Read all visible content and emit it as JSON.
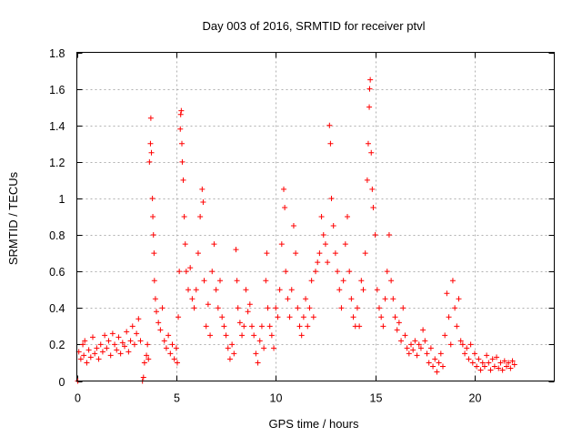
{
  "chart_data": {
    "type": "scatter",
    "title": "Day 003 of 2016, SRMTID for receiver ptvl",
    "xlabel": "GPS time / hours",
    "ylabel": "SRMTID / TECUs",
    "xlim": [
      0,
      24
    ],
    "ylim": [
      0,
      1.8
    ],
    "xticks": [
      0,
      5,
      10,
      15,
      20
    ],
    "xtick_labels": [
      "0",
      "5",
      "10",
      "15",
      "20"
    ],
    "yticks": [
      0,
      0.2,
      0.4,
      0.6,
      0.8,
      1.0,
      1.2,
      1.4,
      1.6,
      1.8
    ],
    "ytick_labels": [
      "0",
      "0.2",
      "0.4",
      "0.6",
      "0.8",
      "1",
      "1.2",
      "1.4",
      "1.6",
      "1.8"
    ],
    "grid": true,
    "marker": "+",
    "color": "#ff0000",
    "series": [
      {
        "name": "ptvl",
        "points": [
          [
            0.05,
            0.0
          ],
          [
            0.1,
            0.16
          ],
          [
            0.2,
            0.12
          ],
          [
            0.3,
            0.2
          ],
          [
            0.35,
            0.14
          ],
          [
            0.4,
            0.22
          ],
          [
            0.5,
            0.1
          ],
          [
            0.6,
            0.17
          ],
          [
            0.7,
            0.13
          ],
          [
            0.8,
            0.24
          ],
          [
            0.9,
            0.15
          ],
          [
            1.0,
            0.18
          ],
          [
            1.1,
            0.12
          ],
          [
            1.2,
            0.2
          ],
          [
            1.3,
            0.16
          ],
          [
            1.4,
            0.25
          ],
          [
            1.5,
            0.18
          ],
          [
            1.6,
            0.22
          ],
          [
            1.7,
            0.14
          ],
          [
            1.8,
            0.26
          ],
          [
            1.9,
            0.2
          ],
          [
            2.0,
            0.17
          ],
          [
            2.1,
            0.24
          ],
          [
            2.2,
            0.15
          ],
          [
            2.3,
            0.21
          ],
          [
            2.4,
            0.19
          ],
          [
            2.5,
            0.27
          ],
          [
            2.6,
            0.16
          ],
          [
            2.7,
            0.22
          ],
          [
            2.8,
            0.3
          ],
          [
            2.9,
            0.2
          ],
          [
            3.0,
            0.26
          ],
          [
            3.1,
            0.34
          ],
          [
            3.2,
            0.22
          ],
          [
            3.3,
            0.0
          ],
          [
            3.35,
            0.02
          ],
          [
            3.4,
            0.1
          ],
          [
            3.5,
            0.14
          ],
          [
            3.55,
            0.2
          ],
          [
            3.6,
            0.12
          ],
          [
            3.65,
            1.2
          ],
          [
            3.7,
            1.3
          ],
          [
            3.72,
            1.44
          ],
          [
            3.75,
            1.25
          ],
          [
            3.8,
            1.0
          ],
          [
            3.82,
            0.9
          ],
          [
            3.85,
            0.8
          ],
          [
            3.88,
            0.7
          ],
          [
            3.9,
            0.55
          ],
          [
            3.95,
            0.45
          ],
          [
            4.0,
            0.38
          ],
          [
            4.1,
            0.32
          ],
          [
            4.2,
            0.28
          ],
          [
            4.3,
            0.4
          ],
          [
            4.4,
            0.22
          ],
          [
            4.5,
            0.18
          ],
          [
            4.6,
            0.25
          ],
          [
            4.7,
            0.15
          ],
          [
            4.8,
            0.2
          ],
          [
            4.9,
            0.12
          ],
          [
            5.0,
            0.18
          ],
          [
            5.05,
            0.1
          ],
          [
            5.1,
            0.35
          ],
          [
            5.15,
            0.6
          ],
          [
            5.2,
            1.38
          ],
          [
            5.22,
            1.46
          ],
          [
            5.25,
            1.48
          ],
          [
            5.28,
            1.3
          ],
          [
            5.3,
            1.2
          ],
          [
            5.35,
            1.1
          ],
          [
            5.4,
            0.9
          ],
          [
            5.45,
            0.75
          ],
          [
            5.5,
            0.6
          ],
          [
            5.6,
            0.5
          ],
          [
            5.7,
            0.62
          ],
          [
            5.8,
            0.45
          ],
          [
            5.9,
            0.4
          ],
          [
            6.0,
            0.5
          ],
          [
            6.1,
            0.7
          ],
          [
            6.2,
            0.9
          ],
          [
            6.3,
            1.05
          ],
          [
            6.35,
            0.98
          ],
          [
            6.4,
            0.55
          ],
          [
            6.5,
            0.3
          ],
          [
            6.6,
            0.42
          ],
          [
            6.7,
            0.25
          ],
          [
            6.8,
            0.6
          ],
          [
            6.9,
            0.75
          ],
          [
            7.0,
            0.5
          ],
          [
            7.1,
            0.4
          ],
          [
            7.2,
            0.55
          ],
          [
            7.3,
            0.35
          ],
          [
            7.4,
            0.3
          ],
          [
            7.5,
            0.25
          ],
          [
            7.6,
            0.18
          ],
          [
            7.7,
            0.12
          ],
          [
            7.8,
            0.2
          ],
          [
            7.9,
            0.15
          ],
          [
            8.0,
            0.72
          ],
          [
            8.05,
            0.55
          ],
          [
            8.1,
            0.4
          ],
          [
            8.2,
            0.32
          ],
          [
            8.3,
            0.25
          ],
          [
            8.4,
            0.3
          ],
          [
            8.5,
            0.5
          ],
          [
            8.6,
            0.38
          ],
          [
            8.7,
            0.42
          ],
          [
            8.8,
            0.3
          ],
          [
            8.9,
            0.25
          ],
          [
            9.0,
            0.15
          ],
          [
            9.1,
            0.1
          ],
          [
            9.2,
            0.22
          ],
          [
            9.3,
            0.3
          ],
          [
            9.4,
            0.18
          ],
          [
            9.5,
            0.55
          ],
          [
            9.55,
            0.7
          ],
          [
            9.6,
            0.4
          ],
          [
            9.7,
            0.3
          ],
          [
            9.8,
            0.25
          ],
          [
            9.9,
            0.18
          ],
          [
            10.0,
            0.4
          ],
          [
            10.1,
            0.35
          ],
          [
            10.2,
            0.5
          ],
          [
            10.3,
            0.75
          ],
          [
            10.4,
            1.05
          ],
          [
            10.45,
            0.95
          ],
          [
            10.5,
            0.6
          ],
          [
            10.6,
            0.45
          ],
          [
            10.7,
            0.35
          ],
          [
            10.8,
            0.5
          ],
          [
            10.9,
            0.85
          ],
          [
            11.0,
            0.7
          ],
          [
            11.1,
            0.4
          ],
          [
            11.2,
            0.3
          ],
          [
            11.3,
            0.25
          ],
          [
            11.4,
            0.35
          ],
          [
            11.5,
            0.45
          ],
          [
            11.6,
            0.3
          ],
          [
            11.7,
            0.4
          ],
          [
            11.8,
            0.55
          ],
          [
            11.9,
            0.35
          ],
          [
            12.0,
            0.6
          ],
          [
            12.1,
            0.65
          ],
          [
            12.2,
            0.7
          ],
          [
            12.3,
            0.9
          ],
          [
            12.4,
            0.8
          ],
          [
            12.5,
            0.75
          ],
          [
            12.6,
            0.65
          ],
          [
            12.7,
            1.4
          ],
          [
            12.75,
            1.3
          ],
          [
            12.8,
            1.0
          ],
          [
            12.9,
            0.85
          ],
          [
            13.0,
            0.7
          ],
          [
            13.1,
            0.6
          ],
          [
            13.2,
            0.5
          ],
          [
            13.3,
            0.4
          ],
          [
            13.4,
            0.55
          ],
          [
            13.5,
            0.75
          ],
          [
            13.6,
            0.9
          ],
          [
            13.7,
            0.6
          ],
          [
            13.8,
            0.45
          ],
          [
            13.9,
            0.35
          ],
          [
            14.0,
            0.3
          ],
          [
            14.1,
            0.4
          ],
          [
            14.2,
            0.3
          ],
          [
            14.3,
            0.55
          ],
          [
            14.4,
            0.5
          ],
          [
            14.5,
            0.7
          ],
          [
            14.6,
            1.1
          ],
          [
            14.65,
            1.3
          ],
          [
            14.7,
            1.5
          ],
          [
            14.72,
            1.6
          ],
          [
            14.75,
            1.65
          ],
          [
            14.8,
            1.25
          ],
          [
            14.85,
            1.05
          ],
          [
            14.9,
            0.95
          ],
          [
            15.0,
            0.8
          ],
          [
            15.1,
            0.5
          ],
          [
            15.2,
            0.4
          ],
          [
            15.3,
            0.35
          ],
          [
            15.4,
            0.3
          ],
          [
            15.5,
            0.45
          ],
          [
            15.6,
            0.6
          ],
          [
            15.7,
            0.8
          ],
          [
            15.8,
            0.55
          ],
          [
            15.9,
            0.45
          ],
          [
            16.0,
            0.35
          ],
          [
            16.1,
            0.28
          ],
          [
            16.2,
            0.32
          ],
          [
            16.3,
            0.22
          ],
          [
            16.4,
            0.4
          ],
          [
            16.5,
            0.25
          ],
          [
            16.6,
            0.18
          ],
          [
            16.7,
            0.15
          ],
          [
            16.8,
            0.2
          ],
          [
            16.9,
            0.17
          ],
          [
            17.0,
            0.22
          ],
          [
            17.1,
            0.14
          ],
          [
            17.2,
            0.2
          ],
          [
            17.3,
            0.18
          ],
          [
            17.4,
            0.28
          ],
          [
            17.5,
            0.22
          ],
          [
            17.6,
            0.15
          ],
          [
            17.7,
            0.1
          ],
          [
            17.8,
            0.18
          ],
          [
            17.9,
            0.08
          ],
          [
            18.0,
            0.12
          ],
          [
            18.1,
            0.05
          ],
          [
            18.2,
            0.1
          ],
          [
            18.3,
            0.15
          ],
          [
            18.4,
            0.08
          ],
          [
            18.5,
            0.25
          ],
          [
            18.6,
            0.48
          ],
          [
            18.7,
            0.35
          ],
          [
            18.8,
            0.2
          ],
          [
            18.9,
            0.55
          ],
          [
            19.0,
            0.4
          ],
          [
            19.1,
            0.3
          ],
          [
            19.2,
            0.45
          ],
          [
            19.3,
            0.22
          ],
          [
            19.4,
            0.2
          ],
          [
            19.5,
            0.15
          ],
          [
            19.6,
            0.18
          ],
          [
            19.7,
            0.12
          ],
          [
            19.8,
            0.2
          ],
          [
            19.9,
            0.1
          ],
          [
            20.0,
            0.15
          ],
          [
            20.1,
            0.08
          ],
          [
            20.2,
            0.12
          ],
          [
            20.3,
            0.06
          ],
          [
            20.4,
            0.1
          ],
          [
            20.5,
            0.08
          ],
          [
            20.6,
            0.14
          ],
          [
            20.7,
            0.1
          ],
          [
            20.8,
            0.06
          ],
          [
            20.9,
            0.12
          ],
          [
            21.0,
            0.08
          ],
          [
            21.1,
            0.13
          ],
          [
            21.2,
            0.07
          ],
          [
            21.3,
            0.1
          ],
          [
            21.4,
            0.06
          ],
          [
            21.5,
            0.11
          ],
          [
            21.6,
            0.08
          ],
          [
            21.7,
            0.1
          ],
          [
            21.8,
            0.07
          ],
          [
            21.9,
            0.11
          ],
          [
            22.0,
            0.09
          ]
        ]
      }
    ]
  }
}
